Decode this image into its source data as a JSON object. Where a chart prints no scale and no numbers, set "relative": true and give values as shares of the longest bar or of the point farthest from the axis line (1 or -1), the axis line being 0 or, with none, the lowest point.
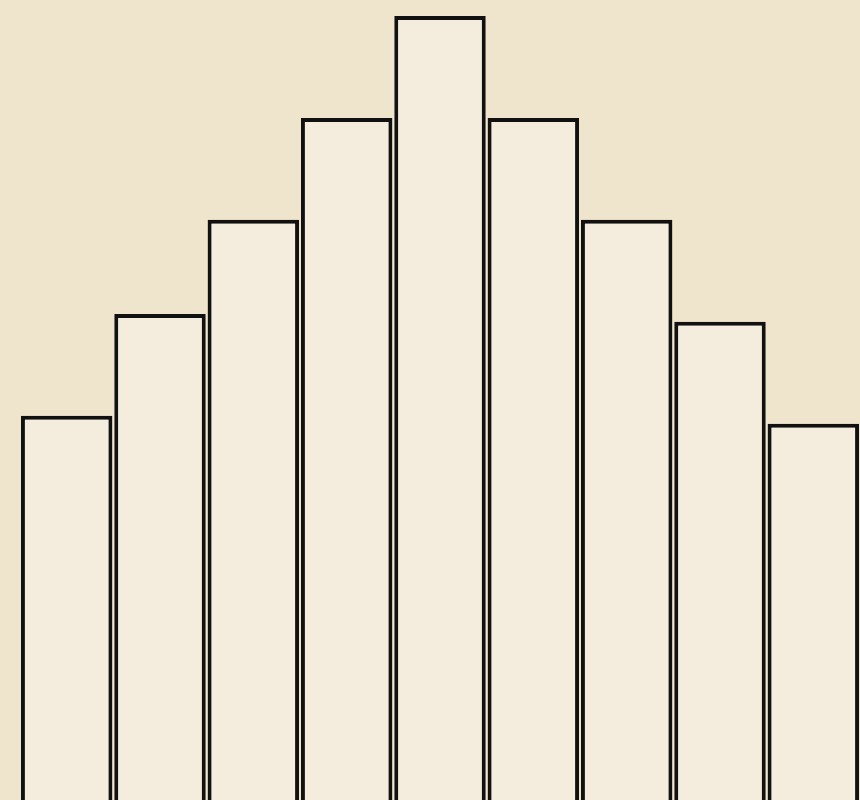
{
  "chart_data": {
    "type": "bar",
    "relative": true,
    "categories": [
      null,
      null,
      null,
      null,
      null,
      null,
      null,
      null,
      null
    ],
    "values": [
      0.49,
      0.62,
      0.74,
      0.87,
      1,
      0.87,
      0.74,
      0.61,
      0.48
    ],
    "color": "#f4ecdc",
    "legend": false
  }
}
